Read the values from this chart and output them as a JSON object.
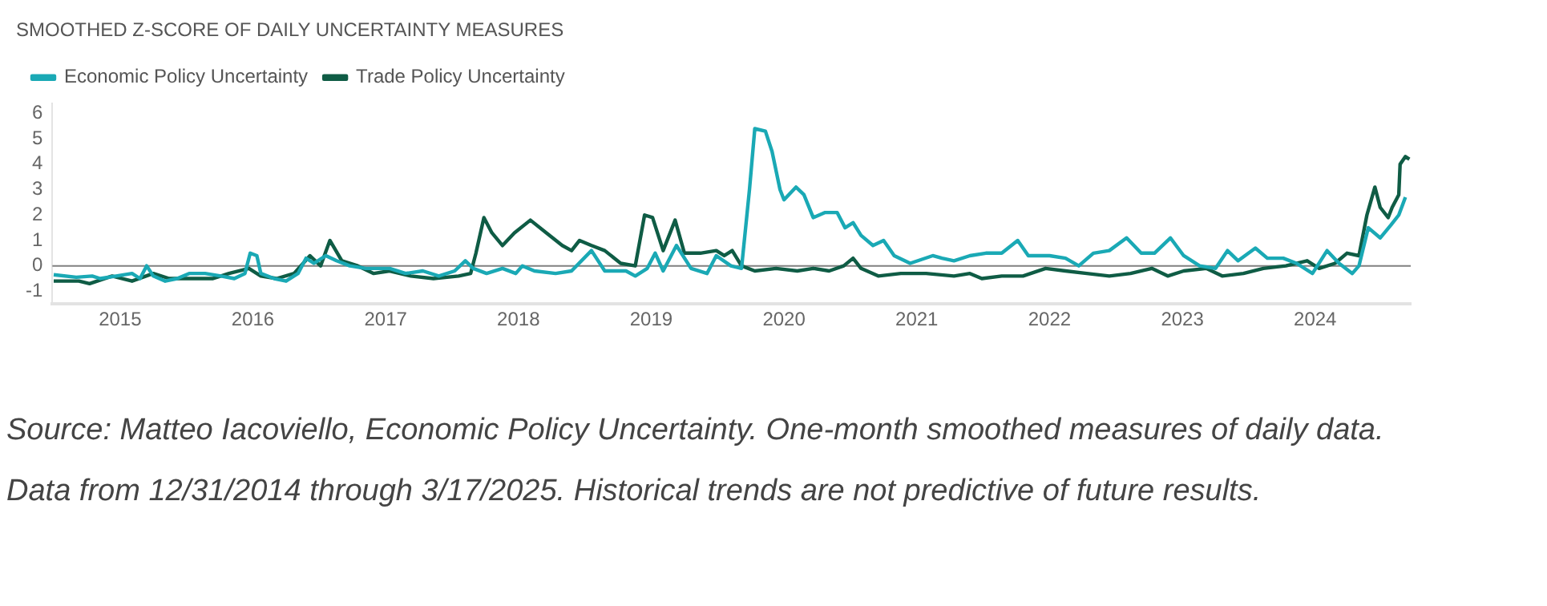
{
  "chart_data": {
    "type": "line",
    "title": "SMOOTHED Z-SCORE OF DAILY UNCERTAINTY MEASURES",
    "annotations": [
      "Source: Matteo Iacoviello, Economic Policy Uncertainty. One-month smoothed measures of daily data. Data from 12/31/2014 through 3/17/2025. Historical trends are not predictive of future results."
    ],
    "legend": "top left",
    "grid": false,
    "marker": "none",
    "line_style": "solid",
    "xlim": [
      2014.99,
      2025.22
    ],
    "xticks": [
      {
        "value": 2015.5,
        "label": "2015"
      },
      {
        "value": 2016.5,
        "label": "2016"
      },
      {
        "value": 2017.5,
        "label": "2017"
      },
      {
        "value": 2018.5,
        "label": "2018"
      },
      {
        "value": 2019.5,
        "label": "2019"
      },
      {
        "value": 2020.5,
        "label": "2020"
      },
      {
        "value": 2021.5,
        "label": "2021"
      },
      {
        "value": 2022.5,
        "label": "2022"
      },
      {
        "value": 2023.5,
        "label": "2023"
      },
      {
        "value": 2024.5,
        "label": "2024"
      }
    ],
    "ylim": [
      -1.5,
      6.4
    ],
    "yticks": [
      -1,
      0,
      1,
      2,
      3,
      4,
      5,
      6
    ],
    "ref_lines": [
      {
        "axis": "y",
        "value": 0,
        "color": "#808080"
      }
    ],
    "series": [
      {
        "name": "Economic Policy Uncertainty",
        "color": "#1aa9b5",
        "x": [
          2015.0,
          2015.17,
          2015.29,
          2015.35,
          2015.47,
          2015.59,
          2015.65,
          2015.7,
          2015.75,
          2015.84,
          2015.93,
          2016.02,
          2016.14,
          2016.26,
          2016.36,
          2016.44,
          2016.48,
          2016.53,
          2016.56,
          2016.66,
          2016.75,
          2016.84,
          2016.9,
          2016.96,
          2017.05,
          2017.13,
          2017.23,
          2017.35,
          2017.53,
          2017.65,
          2017.78,
          2017.9,
          2018.02,
          2018.1,
          2018.16,
          2018.26,
          2018.38,
          2018.48,
          2018.53,
          2018.62,
          2018.78,
          2018.9,
          2019.05,
          2019.15,
          2019.31,
          2019.38,
          2019.47,
          2019.53,
          2019.59,
          2019.69,
          2019.8,
          2019.92,
          2019.99,
          2020.1,
          2020.18,
          2020.24,
          2020.28,
          2020.36,
          2020.41,
          2020.47,
          2020.5,
          2020.59,
          2020.65,
          2020.72,
          2020.81,
          2020.9,
          2020.96,
          2021.02,
          2021.08,
          2021.17,
          2021.25,
          2021.33,
          2021.45,
          2021.62,
          2021.69,
          2021.78,
          2021.9,
          2022.02,
          2022.14,
          2022.26,
          2022.34,
          2022.5,
          2022.62,
          2022.72,
          2022.83,
          2022.95,
          2023.08,
          2023.19,
          2023.29,
          2023.41,
          2023.51,
          2023.63,
          2023.75,
          2023.84,
          2023.92,
          2024.05,
          2024.14,
          2024.26,
          2024.36,
          2024.48,
          2024.59,
          2024.68,
          2024.78,
          2024.83,
          2024.9,
          2024.99,
          2025.07,
          2025.13,
          2025.18
        ],
        "values": [
          -0.35,
          -0.45,
          -0.4,
          -0.5,
          -0.4,
          -0.3,
          -0.5,
          0.0,
          -0.4,
          -0.6,
          -0.5,
          -0.3,
          -0.3,
          -0.4,
          -0.5,
          -0.3,
          0.5,
          0.4,
          -0.3,
          -0.5,
          -0.6,
          -0.3,
          0.3,
          0.1,
          0.4,
          0.2,
          0.0,
          -0.1,
          -0.1,
          -0.3,
          -0.2,
          -0.4,
          -0.2,
          0.2,
          -0.1,
          -0.3,
          -0.1,
          -0.3,
          0.0,
          -0.2,
          -0.3,
          -0.2,
          0.6,
          -0.2,
          -0.2,
          -0.4,
          -0.1,
          0.5,
          -0.2,
          0.8,
          -0.1,
          -0.3,
          0.4,
          0.0,
          -0.1,
          3.0,
          5.4,
          5.3,
          4.5,
          3.0,
          2.6,
          3.1,
          2.8,
          1.9,
          2.1,
          2.1,
          1.5,
          1.7,
          1.2,
          0.8,
          1.0,
          0.4,
          0.1,
          0.4,
          0.3,
          0.2,
          0.4,
          0.5,
          0.5,
          1.0,
          0.4,
          0.4,
          0.3,
          0.0,
          0.5,
          0.6,
          1.1,
          0.5,
          0.5,
          1.1,
          0.4,
          0.0,
          -0.1,
          0.6,
          0.2,
          0.7,
          0.3,
          0.3,
          0.1,
          -0.3,
          0.6,
          0.1,
          -0.3,
          0.0,
          1.5,
          1.1,
          1.6,
          2.0,
          2.7
        ]
      },
      {
        "name": "Trade Policy Uncertainty",
        "color": "#0f5c45",
        "x": [
          2015.0,
          2015.19,
          2015.27,
          2015.44,
          2015.59,
          2015.75,
          2015.87,
          2016.04,
          2016.2,
          2016.32,
          2016.47,
          2016.56,
          2016.68,
          2016.81,
          2016.93,
          2017.01,
          2017.08,
          2017.17,
          2017.29,
          2017.41,
          2017.53,
          2017.69,
          2017.86,
          2018.05,
          2018.14,
          2018.18,
          2018.24,
          2018.3,
          2018.38,
          2018.47,
          2018.59,
          2018.71,
          2018.83,
          2018.9,
          2018.96,
          2019.05,
          2019.15,
          2019.27,
          2019.38,
          2019.45,
          2019.51,
          2019.59,
          2019.68,
          2019.75,
          2019.87,
          2019.99,
          2020.05,
          2020.11,
          2020.18,
          2020.28,
          2020.44,
          2020.6,
          2020.72,
          2020.84,
          2020.95,
          2021.02,
          2021.08,
          2021.21,
          2021.38,
          2021.57,
          2021.78,
          2021.9,
          2021.99,
          2022.14,
          2022.3,
          2022.47,
          2022.62,
          2022.78,
          2022.95,
          2023.11,
          2023.27,
          2023.39,
          2023.51,
          2023.68,
          2023.8,
          2023.96,
          2024.11,
          2024.28,
          2024.44,
          2024.53,
          2024.65,
          2024.74,
          2024.83,
          2024.89,
          2024.95,
          2024.99,
          2025.05,
          2025.08,
          2025.13,
          2025.14,
          2025.18,
          2025.21
        ],
        "values": [
          -0.6,
          -0.6,
          -0.7,
          -0.4,
          -0.6,
          -0.3,
          -0.5,
          -0.5,
          -0.5,
          -0.3,
          -0.1,
          -0.4,
          -0.5,
          -0.3,
          0.4,
          0.0,
          1.0,
          0.2,
          0.0,
          -0.3,
          -0.2,
          -0.4,
          -0.5,
          -0.4,
          -0.3,
          0.5,
          1.9,
          1.3,
          0.8,
          1.3,
          1.8,
          1.3,
          0.8,
          0.6,
          1.0,
          0.8,
          0.6,
          0.1,
          0.0,
          2.0,
          1.9,
          0.6,
          1.8,
          0.5,
          0.5,
          0.6,
          0.4,
          0.6,
          0.0,
          -0.2,
          -0.1,
          -0.2,
          -0.1,
          -0.2,
          0.0,
          0.3,
          -0.1,
          -0.4,
          -0.3,
          -0.3,
          -0.4,
          -0.3,
          -0.5,
          -0.4,
          -0.4,
          -0.1,
          -0.2,
          -0.3,
          -0.4,
          -0.3,
          -0.1,
          -0.4,
          -0.2,
          -0.1,
          -0.4,
          -0.3,
          -0.1,
          0.0,
          0.2,
          -0.1,
          0.1,
          0.5,
          0.4,
          2.0,
          3.1,
          2.3,
          1.9,
          2.3,
          2.8,
          4.0,
          4.3,
          4.2
        ]
      }
    ]
  }
}
